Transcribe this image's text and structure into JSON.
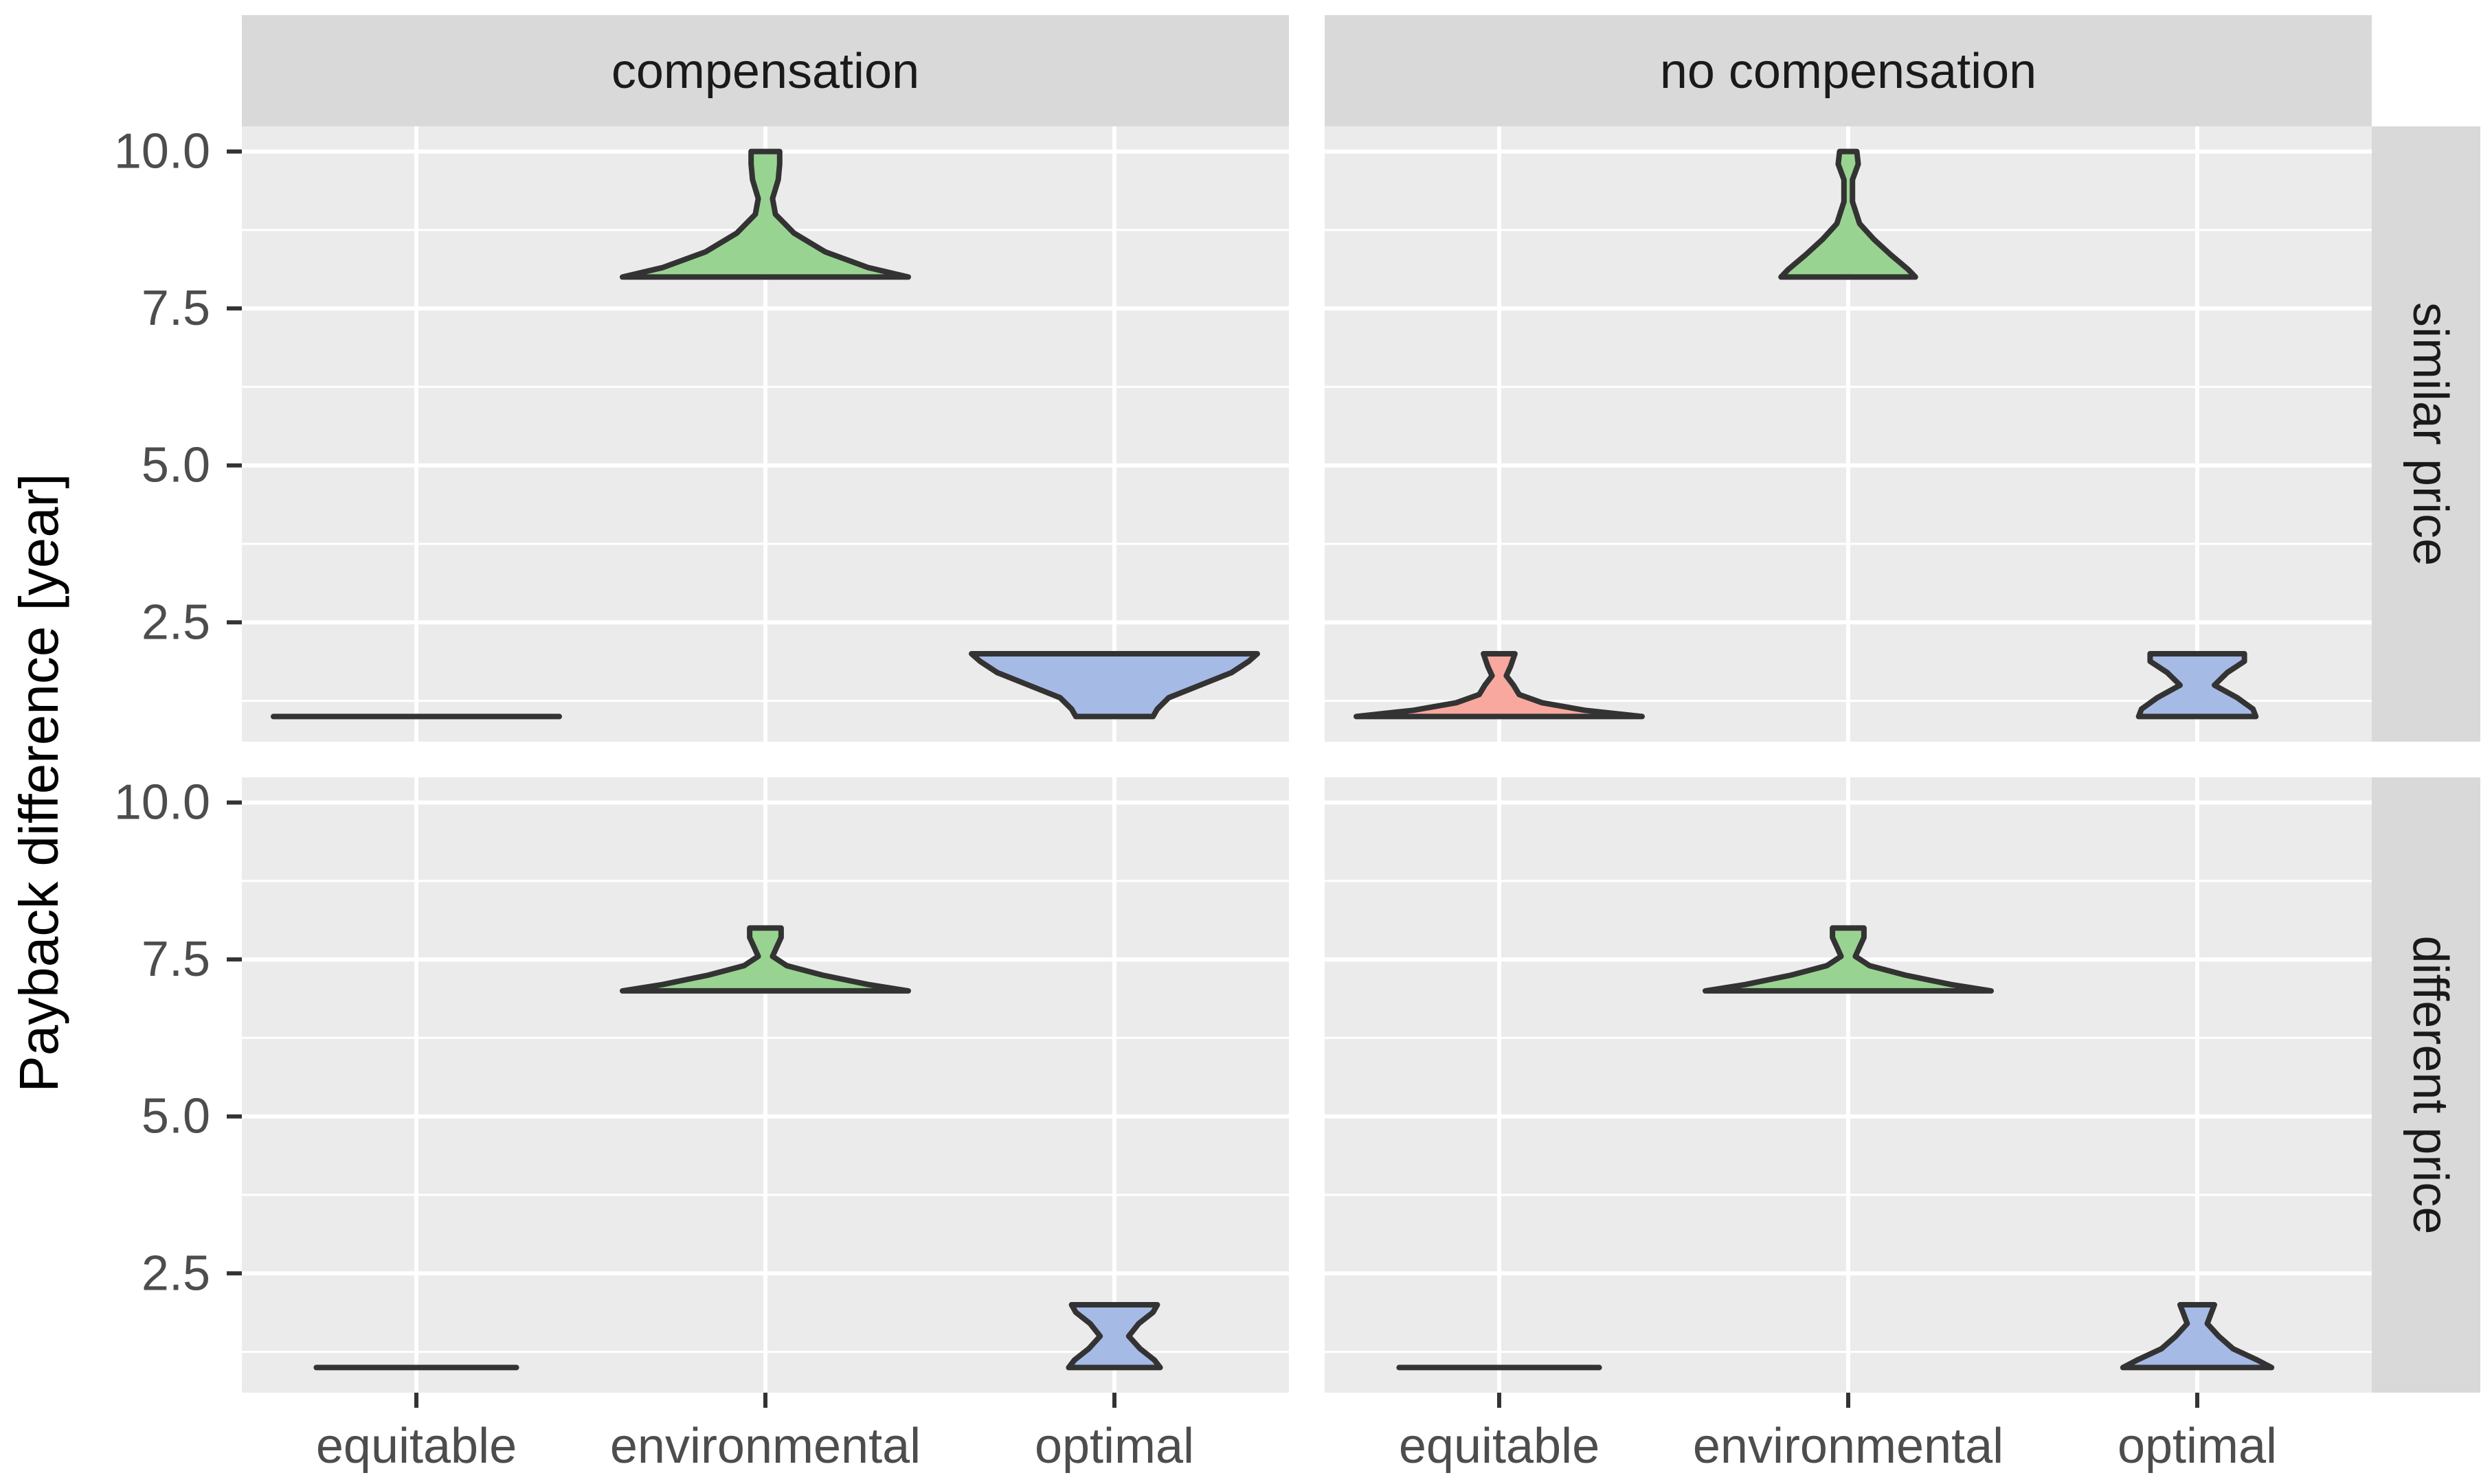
{
  "chart_data": {
    "type": "violin",
    "ylabel": "Payback difference [year]",
    "xlabel": "",
    "categories": [
      "equitable",
      "environmental",
      "optimal"
    ],
    "column_facets": [
      "compensation",
      "no compensation"
    ],
    "row_facets": [
      "similar price",
      "different price"
    ],
    "yticks": [
      "2.5",
      "5.0",
      "7.5",
      "10.0"
    ],
    "ytick_values": [
      2.5,
      5.0,
      7.5,
      10.0
    ],
    "ylim": [
      0.6,
      10.4
    ],
    "grid": true,
    "colors": {
      "equitable": "#F8A89E",
      "environmental": "#99D391",
      "optimal": "#A6BAE6",
      "outline": "#333333",
      "panel_bg": "#EBEBEB",
      "strip_bg": "#D9D9D9",
      "grid": "#FFFFFF"
    },
    "panels": [
      {
        "col": "compensation",
        "row": "similar price",
        "violins": [
          {
            "category": "equitable",
            "min": 1.0,
            "max": 1.0,
            "profile": [
              [
                1.0,
                1.0
              ]
            ]
          },
          {
            "category": "environmental",
            "min": 8.0,
            "max": 10.0,
            "profile": [
              [
                8.0,
                1.0
              ],
              [
                8.15,
                0.72
              ],
              [
                8.4,
                0.42
              ],
              [
                8.7,
                0.2
              ],
              [
                9.0,
                0.07
              ],
              [
                9.25,
                0.05
              ],
              [
                9.55,
                0.09
              ],
              [
                9.8,
                0.1
              ],
              [
                10.0,
                0.1
              ]
            ]
          },
          {
            "category": "optimal",
            "min": 1.0,
            "max": 2.0,
            "profile": [
              [
                1.0,
                0.27
              ],
              [
                1.12,
                0.3
              ],
              [
                1.3,
                0.38
              ],
              [
                1.5,
                0.6
              ],
              [
                1.7,
                0.82
              ],
              [
                1.88,
                0.94
              ],
              [
                2.0,
                1.0
              ]
            ]
          }
        ]
      },
      {
        "col": "no compensation",
        "row": "similar price",
        "violins": [
          {
            "category": "equitable",
            "min": 1.0,
            "max": 2.0,
            "profile": [
              [
                1.0,
                1.0
              ],
              [
                1.1,
                0.6
              ],
              [
                1.22,
                0.3
              ],
              [
                1.35,
                0.14
              ],
              [
                1.5,
                0.1
              ],
              [
                1.65,
                0.05
              ],
              [
                1.8,
                0.08
              ],
              [
                2.0,
                0.11
              ]
            ]
          },
          {
            "category": "environmental",
            "min": 8.0,
            "max": 10.0,
            "profile": [
              [
                8.0,
                0.47
              ],
              [
                8.12,
                0.42
              ],
              [
                8.35,
                0.3
              ],
              [
                8.6,
                0.18
              ],
              [
                8.85,
                0.08
              ],
              [
                9.2,
                0.03
              ],
              [
                9.55,
                0.03
              ],
              [
                9.8,
                0.07
              ],
              [
                10.0,
                0.06
              ]
            ]
          },
          {
            "category": "optimal",
            "min": 1.0,
            "max": 2.0,
            "profile": [
              [
                1.0,
                0.41
              ],
              [
                1.12,
                0.39
              ],
              [
                1.3,
                0.28
              ],
              [
                1.5,
                0.12
              ],
              [
                1.7,
                0.21
              ],
              [
                1.88,
                0.33
              ],
              [
                2.0,
                0.33
              ]
            ]
          }
        ]
      },
      {
        "col": "compensation",
        "row": "different price",
        "violins": [
          {
            "category": "equitable",
            "min": 1.0,
            "max": 1.0,
            "profile": [
              [
                1.0,
                0.7
              ]
            ]
          },
          {
            "category": "environmental",
            "min": 7.0,
            "max": 8.0,
            "profile": [
              [
                7.0,
                1.0
              ],
              [
                7.1,
                0.72
              ],
              [
                7.25,
                0.4
              ],
              [
                7.4,
                0.15
              ],
              [
                7.55,
                0.05
              ],
              [
                7.7,
                0.08
              ],
              [
                7.85,
                0.11
              ],
              [
                8.0,
                0.11
              ]
            ]
          },
          {
            "category": "optimal",
            "min": 1.0,
            "max": 2.0,
            "profile": [
              [
                1.0,
                0.32
              ],
              [
                1.12,
                0.28
              ],
              [
                1.3,
                0.18
              ],
              [
                1.5,
                0.1
              ],
              [
                1.7,
                0.17
              ],
              [
                1.88,
                0.27
              ],
              [
                2.0,
                0.3
              ]
            ]
          }
        ]
      },
      {
        "col": "no compensation",
        "row": "different price",
        "violins": [
          {
            "category": "equitable",
            "min": 1.0,
            "max": 1.0,
            "profile": [
              [
                1.0,
                0.7
              ]
            ]
          },
          {
            "category": "environmental",
            "min": 7.0,
            "max": 8.0,
            "profile": [
              [
                7.0,
                1.0
              ],
              [
                7.1,
                0.72
              ],
              [
                7.25,
                0.4
              ],
              [
                7.4,
                0.15
              ],
              [
                7.55,
                0.05
              ],
              [
                7.7,
                0.08
              ],
              [
                7.85,
                0.11
              ],
              [
                8.0,
                0.11
              ]
            ]
          },
          {
            "category": "optimal",
            "min": 1.0,
            "max": 2.0,
            "profile": [
              [
                1.0,
                0.52
              ],
              [
                1.12,
                0.42
              ],
              [
                1.3,
                0.25
              ],
              [
                1.5,
                0.15
              ],
              [
                1.7,
                0.07
              ],
              [
                1.88,
                0.1
              ],
              [
                2.0,
                0.12
              ]
            ]
          }
        ]
      }
    ]
  }
}
